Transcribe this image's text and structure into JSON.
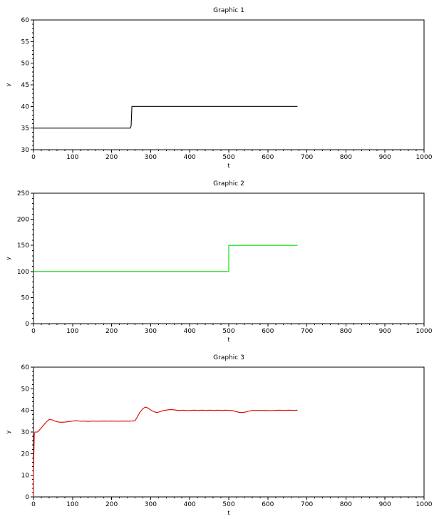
{
  "chart_data": [
    {
      "type": "line",
      "title": "Graphic 1",
      "xlabel": "t",
      "ylabel": "y",
      "xlim": [
        0,
        1000
      ],
      "ylim": [
        30,
        60
      ],
      "xticks": [
        0,
        100,
        200,
        300,
        400,
        500,
        600,
        700,
        800,
        900,
        1000
      ],
      "yticks": [
        30,
        35,
        40,
        45,
        50,
        55,
        60
      ],
      "grid": false,
      "series": [
        {
          "color": "#000000",
          "points": [
            [
              0,
              35
            ],
            [
              248,
              35
            ],
            [
              250,
              35.5
            ],
            [
              252,
              40
            ],
            [
              676,
              40
            ]
          ]
        }
      ]
    },
    {
      "type": "line",
      "title": "Graphic 2",
      "xlabel": "t",
      "ylabel": "y",
      "xlim": [
        0,
        1000
      ],
      "ylim": [
        0,
        250
      ],
      "xticks": [
        0,
        100,
        200,
        300,
        400,
        500,
        600,
        700,
        800,
        900,
        1000
      ],
      "yticks": [
        0,
        50,
        100,
        150,
        200,
        250
      ],
      "grid": false,
      "series": [
        {
          "color": "#00dd00",
          "points": [
            [
              0,
              100
            ],
            [
              500,
              100
            ],
            [
              500,
              150
            ],
            [
              676,
              150
            ]
          ]
        }
      ]
    },
    {
      "type": "line",
      "title": "Graphic 3",
      "xlabel": "t",
      "ylabel": "y",
      "xlim": [
        0,
        1000
      ],
      "ylim": [
        0,
        60
      ],
      "xticks": [
        0,
        100,
        200,
        300,
        400,
        500,
        600,
        700,
        800,
        900,
        1000
      ],
      "yticks": [
        0,
        10,
        20,
        30,
        40,
        50,
        60
      ],
      "grid": false,
      "series": [
        {
          "color": "#dd0000",
          "points": [
            [
              0,
              0
            ],
            [
              0,
              10
            ],
            [
              1,
              20
            ],
            [
              2,
              29
            ],
            [
              4,
              30
            ],
            [
              10,
              30
            ],
            [
              18,
              31.5
            ],
            [
              25,
              33
            ],
            [
              32,
              34.5
            ],
            [
              40,
              35.8
            ],
            [
              48,
              35.6
            ],
            [
              56,
              35
            ],
            [
              64,
              34.6
            ],
            [
              72,
              34.5
            ],
            [
              80,
              34.6
            ],
            [
              90,
              34.8
            ],
            [
              100,
              35.1
            ],
            [
              110,
              35.2
            ],
            [
              120,
              35.0
            ],
            [
              130,
              35.1
            ],
            [
              140,
              34.9
            ],
            [
              150,
              35.1
            ],
            [
              160,
              35.0
            ],
            [
              170,
              35.0
            ],
            [
              180,
              35.1
            ],
            [
              190,
              35.0
            ],
            [
              200,
              35.1
            ],
            [
              210,
              35.0
            ],
            [
              220,
              35.0
            ],
            [
              230,
              35.1
            ],
            [
              240,
              35.0
            ],
            [
              252,
              35.1
            ],
            [
              260,
              35.2
            ],
            [
              266,
              37
            ],
            [
              272,
              39
            ],
            [
              280,
              40.8
            ],
            [
              286,
              41.5
            ],
            [
              292,
              41.2
            ],
            [
              300,
              40.2
            ],
            [
              308,
              39.4
            ],
            [
              316,
              39.0
            ],
            [
              324,
              39.4
            ],
            [
              332,
              39.9
            ],
            [
              342,
              40.2
            ],
            [
              352,
              40.4
            ],
            [
              362,
              40.2
            ],
            [
              372,
              40.0
            ],
            [
              382,
              40.1
            ],
            [
              392,
              39.9
            ],
            [
              402,
              40.0
            ],
            [
              412,
              40.1
            ],
            [
              422,
              40.0
            ],
            [
              432,
              40.1
            ],
            [
              442,
              40.0
            ],
            [
              452,
              40.1
            ],
            [
              462,
              40.0
            ],
            [
              472,
              40.1
            ],
            [
              482,
              40.0
            ],
            [
              492,
              40.1
            ],
            [
              502,
              40.0
            ],
            [
              510,
              39.9
            ],
            [
              518,
              39.5
            ],
            [
              526,
              39.1
            ],
            [
              534,
              39.0
            ],
            [
              542,
              39.2
            ],
            [
              550,
              39.6
            ],
            [
              558,
              39.9
            ],
            [
              570,
              40.0
            ],
            [
              582,
              40.0
            ],
            [
              594,
              40.0
            ],
            [
              606,
              39.9
            ],
            [
              618,
              40.0
            ],
            [
              630,
              40.1
            ],
            [
              642,
              40.0
            ],
            [
              654,
              40.1
            ],
            [
              666,
              40.0
            ],
            [
              676,
              40.1
            ]
          ]
        }
      ]
    }
  ]
}
